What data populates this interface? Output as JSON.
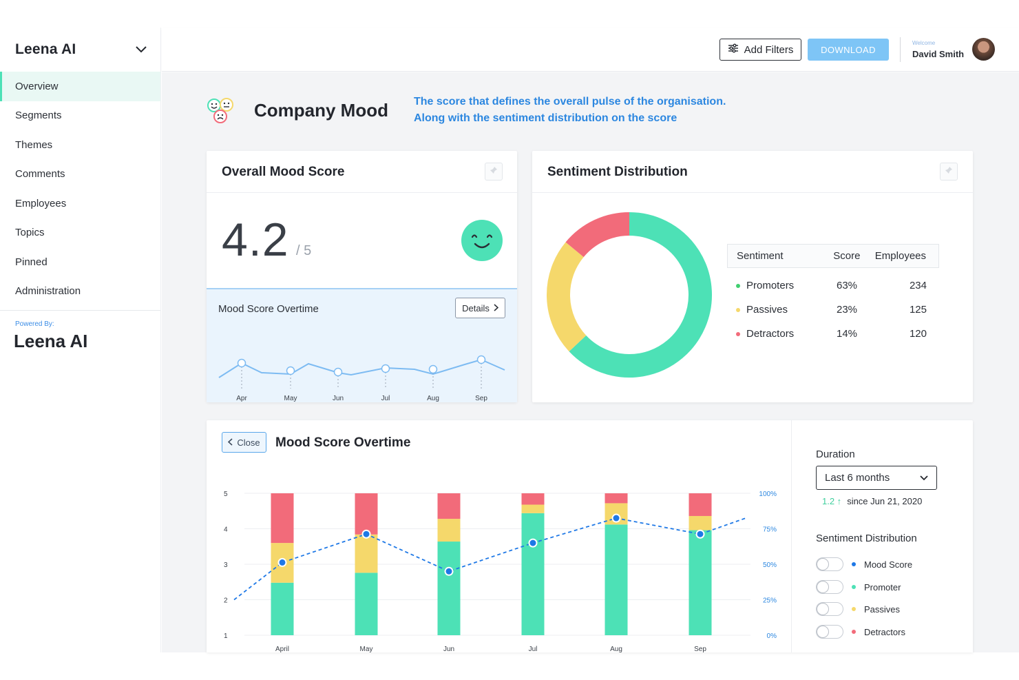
{
  "sidebar": {
    "brand": "Leena AI",
    "items": [
      {
        "label": "Overview",
        "active": true
      },
      {
        "label": "Segments"
      },
      {
        "label": "Themes"
      },
      {
        "label": "Comments"
      },
      {
        "label": "Employees"
      },
      {
        "label": "Topics"
      },
      {
        "label": "Pinned"
      },
      {
        "label": "Administration"
      }
    ],
    "powered_by": "Powered By:",
    "logo_text": "Leena AI"
  },
  "topbar": {
    "add_filters": "Add Filters",
    "download": "DOWNLOAD",
    "welcome": "Welcome",
    "user_name": "David Smith"
  },
  "page": {
    "title": "Company Mood",
    "description_line1": "The score that defines the overall pulse of the organisation.",
    "description_line2": "Along with the sentiment distribution on the score"
  },
  "mood_card": {
    "title": "Overall Mood Score",
    "score": "4.2",
    "score_max": "/ 5",
    "trend_title": "Mood Score Overtime",
    "details_label": "Details",
    "trend_months": [
      "Apr",
      "May",
      "Jun",
      "Jul",
      "Aug",
      "Sep"
    ]
  },
  "sentiment_card": {
    "title": "Sentiment Distribution",
    "headers": {
      "sentiment": "Sentiment",
      "score": "Score",
      "employees": "Employees"
    },
    "rows": [
      {
        "label": "Promoters",
        "score": "63%",
        "employees": "234",
        "color": "#4de1b6"
      },
      {
        "label": "Passives",
        "score": "23%",
        "employees": "125",
        "color": "#f5d86b"
      },
      {
        "label": "Detractors",
        "score": "14%",
        "employees": "120",
        "color": "#f26b7a"
      }
    ]
  },
  "chart_card": {
    "close_label": "Close",
    "title": "Mood Score Overtime",
    "duration_label": "Duration",
    "duration_value": "Last 6 months",
    "delta": "1.2 ↑",
    "since": "since Jun 21, 2020",
    "distribution_label": "Sentiment Distribution",
    "toggles": [
      {
        "label": "Mood Score",
        "color": "#1e78e6"
      },
      {
        "label": "Promoter",
        "color": "#4de1b6"
      },
      {
        "label": "Passives",
        "color": "#f5d86b"
      },
      {
        "label": "Detractors",
        "color": "#f26b7a"
      }
    ]
  },
  "colors": {
    "promoter": "#4de1b6",
    "passive": "#f5d86b",
    "detractor": "#f26b7a",
    "line": "#1e78e6",
    "accent": "#2c87e0"
  },
  "chart_data": [
    {
      "type": "pie",
      "title": "Sentiment Distribution",
      "categories": [
        "Promoters",
        "Passives",
        "Detractors"
      ],
      "values": [
        63,
        23,
        14
      ]
    },
    {
      "type": "line",
      "title": "Mood Score Overtime",
      "x": [
        "Apr",
        "May",
        "Jun",
        "Jul",
        "Aug",
        "Sep"
      ],
      "values": [
        4.1,
        3.9,
        3.95,
        4.0,
        3.95,
        4.15
      ]
    },
    {
      "type": "bar",
      "title": "Mood Score Overtime",
      "categories": [
        "April",
        "May",
        "Jun",
        "Jul",
        "Aug",
        "Sep"
      ],
      "stacked": true,
      "ylim_left": [
        1,
        5
      ],
      "yticks_left": [
        "1",
        "2",
        "3",
        "4",
        "5"
      ],
      "ylim_right": [
        0,
        100
      ],
      "yticks_right": [
        "0%",
        "25%",
        "50%",
        "75%",
        "100%"
      ],
      "series": [
        {
          "name": "Promoter",
          "values": [
            37,
            44,
            66,
            86,
            78,
            74
          ]
        },
        {
          "name": "Passives",
          "values": [
            28,
            27,
            16,
            6,
            15,
            10
          ]
        },
        {
          "name": "Detractors",
          "values": [
            35,
            29,
            18,
            8,
            7,
            16
          ]
        },
        {
          "name": "Mood Score",
          "values": [
            3.05,
            3.85,
            2.8,
            3.6,
            4.3,
            3.85
          ]
        }
      ],
      "line_endpoints": {
        "start": 2.0,
        "end": 4.3
      }
    }
  ]
}
